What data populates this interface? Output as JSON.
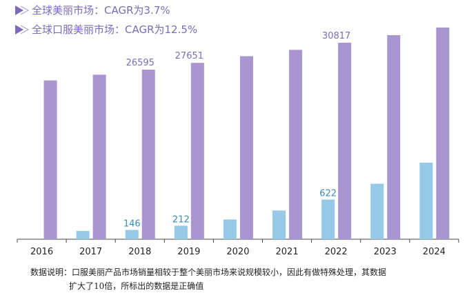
{
  "legend": [
    {
      "text": "全球美丽市场：CAGR为3.7%",
      "icon": "triangle-arrow-icon"
    },
    {
      "text": "全球口服美丽市场：CAGR为12.5%",
      "icon": "triangle-arrow-icon"
    }
  ],
  "chart_data": {
    "type": "bar",
    "categories": [
      "2016",
      "2017",
      "2018",
      "2019",
      "2020",
      "2021",
      "2022",
      "2023",
      "2024"
    ],
    "series": [
      {
        "values": [
          0,
          130,
          146,
          212,
          310,
          450,
          622,
          870,
          1200
        ],
        "color": "#95c9e6",
        "labels": [
          null,
          null,
          "146",
          "212",
          null,
          null,
          "622",
          null,
          null
        ]
      },
      {
        "values": [
          24900,
          25800,
          26595,
          27651,
          28700,
          29700,
          30817,
          32000,
          33200
        ],
        "color": "#a996d0",
        "labels": [
          null,
          null,
          "26595",
          "27651",
          null,
          null,
          "30817",
          null,
          null
        ]
      }
    ],
    "note": "口服美丽市场数据放大10倍显示",
    "grid": false,
    "label_color": "#7b6bb8",
    "small_label_color": "#3a8ab8"
  },
  "footnote": {
    "line1": "数据说明：口服美丽产品市场销量相较于整个美丽市场来说规模较小，因此有做特殊处理，其数据",
    "line2": "扩大了10倍，所标出的数据是正确值"
  }
}
